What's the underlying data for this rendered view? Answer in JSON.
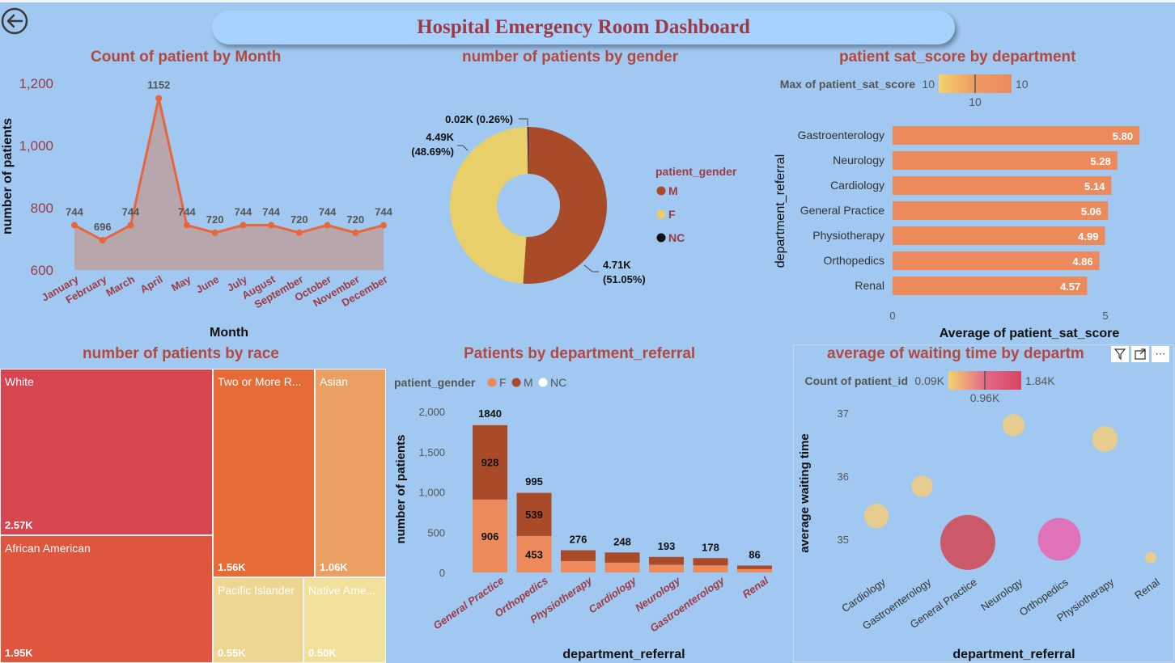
{
  "dashboard": {
    "title": "Hospital Emergency Room Dashboard"
  },
  "colors": {
    "background": "#a0c8f0",
    "male": "#a94a28",
    "female": "#e8cf6a",
    "nc": "#111111",
    "accent": "#e8663a",
    "title": "#b5483e"
  },
  "icons": {
    "back": "back-arrow-icon",
    "filter": "filter-icon",
    "focus": "focus-mode-icon",
    "more": "more-options-icon"
  },
  "chart_data": [
    {
      "id": "month",
      "type": "area",
      "title": "Count of patient by Month",
      "xlabel": "Month",
      "ylabel": "number of patients",
      "categories": [
        "January",
        "February",
        "March",
        "April",
        "May",
        "June",
        "July",
        "August",
        "September",
        "October",
        "November",
        "December"
      ],
      "values": [
        744,
        696,
        744,
        1152,
        744,
        720,
        744,
        744,
        720,
        744,
        720,
        744
      ],
      "y_ticks": [
        "600",
        "800",
        "1,000",
        "1,200"
      ],
      "y_tick_values": [
        600,
        800,
        1000,
        1200
      ],
      "ylim": [
        600,
        1200
      ]
    },
    {
      "id": "gender",
      "type": "pie",
      "title": "number of patients by gender",
      "legend_title": "patient_gender",
      "legend_position": "right",
      "slices": [
        {
          "name": "M",
          "value": 4.71,
          "percent": 51.05,
          "label_value": "4.71K",
          "label_pct": "(51.05%)"
        },
        {
          "name": "F",
          "value": 4.49,
          "percent": 48.69,
          "label_value": "4.49K",
          "label_pct": "(48.69%)"
        },
        {
          "name": "NC",
          "value": 0.02,
          "percent": 0.26,
          "label": "0.02K (0.26%)"
        }
      ]
    },
    {
      "id": "satisfaction",
      "type": "bar",
      "title": "patient sat_score by department",
      "xlabel": "Average of patient_sat_score",
      "ylabel": "department_referral",
      "categories": [
        "Gastroenterology",
        "Neurology",
        "Cardiology",
        "General Practice",
        "Physiotherapy",
        "Orthopedics",
        "Renal"
      ],
      "values": [
        5.8,
        5.28,
        5.14,
        5.06,
        4.99,
        4.86,
        4.57
      ],
      "value_labels": [
        "5.80",
        "5.28",
        "5.14",
        "5.06",
        "4.99",
        "4.86",
        "4.57"
      ],
      "x_ticks": [
        "0",
        "5"
      ],
      "x_tick_values": [
        0,
        5
      ],
      "color_legend": {
        "label": "Max of patient_sat_score",
        "min": "10",
        "max": "10",
        "mid": "10"
      }
    },
    {
      "id": "race",
      "type": "treemap",
      "title": "number of patients by race",
      "items": [
        {
          "name": "White",
          "value_label": "2.57K",
          "value": 2.57,
          "color": "#d64550"
        },
        {
          "name": "African American",
          "value_label": "1.95K",
          "value": 1.95,
          "color": "#e0553e"
        },
        {
          "name": "Two or More R...",
          "value_label": "1.56K",
          "value": 1.56,
          "color": "#e66b36"
        },
        {
          "name": "Asian",
          "value_label": "1.06K",
          "value": 1.06,
          "color": "#eba063"
        },
        {
          "name": "Pacific Islander",
          "value_label": "0.55K",
          "value": 0.55,
          "color": "#eed692"
        },
        {
          "name": "Native Ame...",
          "value_label": "0.50K",
          "value": 0.5,
          "color": "#f0e09a"
        }
      ]
    },
    {
      "id": "dept_stacked",
      "type": "bar",
      "stacked": true,
      "title": "Patients by department_referral",
      "xlabel": "department_referral",
      "ylabel": "number of patients",
      "legend_title": "patient_gender",
      "legend_position": "top-left",
      "categories": [
        "General Practice",
        "Orthopedics",
        "Physiotherapy",
        "Cardiology",
        "Neurology",
        "Gastroenterology",
        "Renal"
      ],
      "series": [
        {
          "name": "F",
          "values": [
            906,
            453,
            141,
            122,
            96,
            88,
            42
          ],
          "labels": [
            "906",
            "453",
            "",
            "",
            "",
            "",
            ""
          ]
        },
        {
          "name": "M",
          "values": [
            928,
            539,
            135,
            126,
            97,
            90,
            44
          ],
          "labels": [
            "928",
            "539",
            "",
            "",
            "",
            "",
            ""
          ]
        },
        {
          "name": "NC",
          "values": [
            6,
            3,
            0,
            0,
            0,
            0,
            0
          ],
          "labels": [
            "",
            "",
            "",
            "",
            "",
            "",
            ""
          ]
        }
      ],
      "totals": [
        1840,
        995,
        276,
        248,
        193,
        178,
        86
      ],
      "total_labels": [
        "1840",
        "995",
        "276",
        "248",
        "193",
        "178",
        "86"
      ],
      "y_ticks": [
        "0",
        "500",
        "1,000",
        "1,500",
        "2,000"
      ],
      "y_tick_values": [
        0,
        500,
        1000,
        1500,
        2000
      ],
      "ylim": [
        0,
        2000
      ]
    },
    {
      "id": "waiting",
      "type": "scatter",
      "title": "average of waiting time by departm",
      "xlabel": "department_referral",
      "ylabel": "average waiting time",
      "categories": [
        "Cardiology",
        "Gastroenterology",
        "General Practice",
        "Neurology",
        "Orthopedics",
        "Physiotherapy",
        "Renal"
      ],
      "points": [
        {
          "x": "Cardiology",
          "y": 35.37,
          "count": 248
        },
        {
          "x": "Gastroenterology",
          "y": 35.84,
          "count": 178
        },
        {
          "x": "General Practice",
          "y": 34.95,
          "count": 1840
        },
        {
          "x": "Neurology",
          "y": 36.81,
          "count": 193
        },
        {
          "x": "Orthopedics",
          "y": 35.0,
          "count": 995
        },
        {
          "x": "Physiotherapy",
          "y": 36.59,
          "count": 276
        },
        {
          "x": "Renal",
          "y": 34.71,
          "count": 86
        }
      ],
      "y_ticks": [
        "35",
        "36",
        "37"
      ],
      "y_tick_values": [
        35,
        36,
        37
      ],
      "ylim": [
        34.6,
        37.1
      ],
      "color_legend": {
        "label": "Count of patient_id",
        "min": "0.09K",
        "max": "1.84K",
        "mid": "0.96K"
      }
    }
  ]
}
